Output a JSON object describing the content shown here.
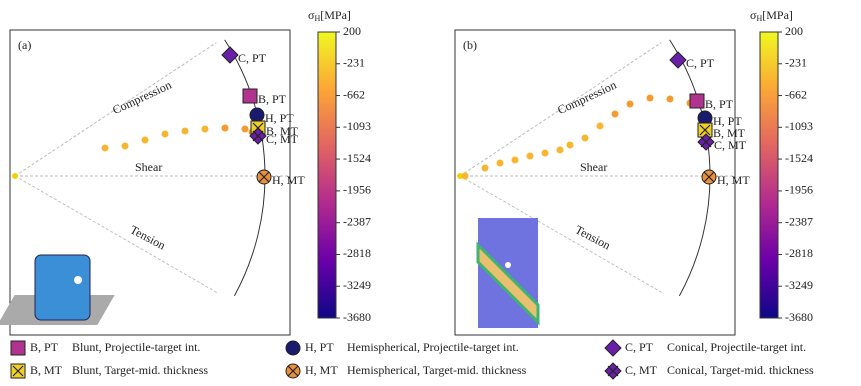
{
  "panels": [
    {
      "label": "(a)",
      "compression": "Compression",
      "shear": "Shear",
      "tension": "Tension",
      "markers": [
        "B, PT",
        "H, PT",
        "C, PT",
        "B, MT",
        "H, MT",
        "C, MT"
      ],
      "colorbar": {
        "symbol": "σ",
        "subscript": "H",
        "unit": "[MPa]",
        "lim": [
          -3680,
          200
        ],
        "ticks": [
          200,
          -231,
          -662,
          -1093,
          -1524,
          -1956,
          -2387,
          -2818,
          -3249,
          -3680
        ]
      }
    },
    {
      "label": "(b)",
      "compression": "Compression",
      "shear": "Shear",
      "tension": "Tension",
      "markers": [
        "B, PT",
        "H, PT",
        "C, PT",
        "B, MT",
        "H, MT",
        "C, MT"
      ],
      "colorbar": {
        "symbol": "σ",
        "subscript": "H",
        "unit": "[MPa]",
        "lim": [
          -3680,
          200
        ],
        "ticks": [
          200,
          -231,
          -662,
          -1093,
          -1524,
          -1956,
          -2387,
          -2818,
          -3249,
          -3680
        ]
      }
    }
  ],
  "legend": [
    {
      "key": "B, PT",
      "text": "Blunt, Projectile-target int."
    },
    {
      "key": "H, PT",
      "text": "Hemispherical, Projectile-target int."
    },
    {
      "key": "C, PT",
      "text": "Conical, Projectile-target int."
    },
    {
      "key": "B, MT",
      "text": "Blunt, Target-mid. thickness"
    },
    {
      "key": "H, MT",
      "text": "Hemispherical, Target-mid. thickness"
    },
    {
      "key": "C, MT",
      "text": "Conical, Target-mid. thickness"
    }
  ]
}
